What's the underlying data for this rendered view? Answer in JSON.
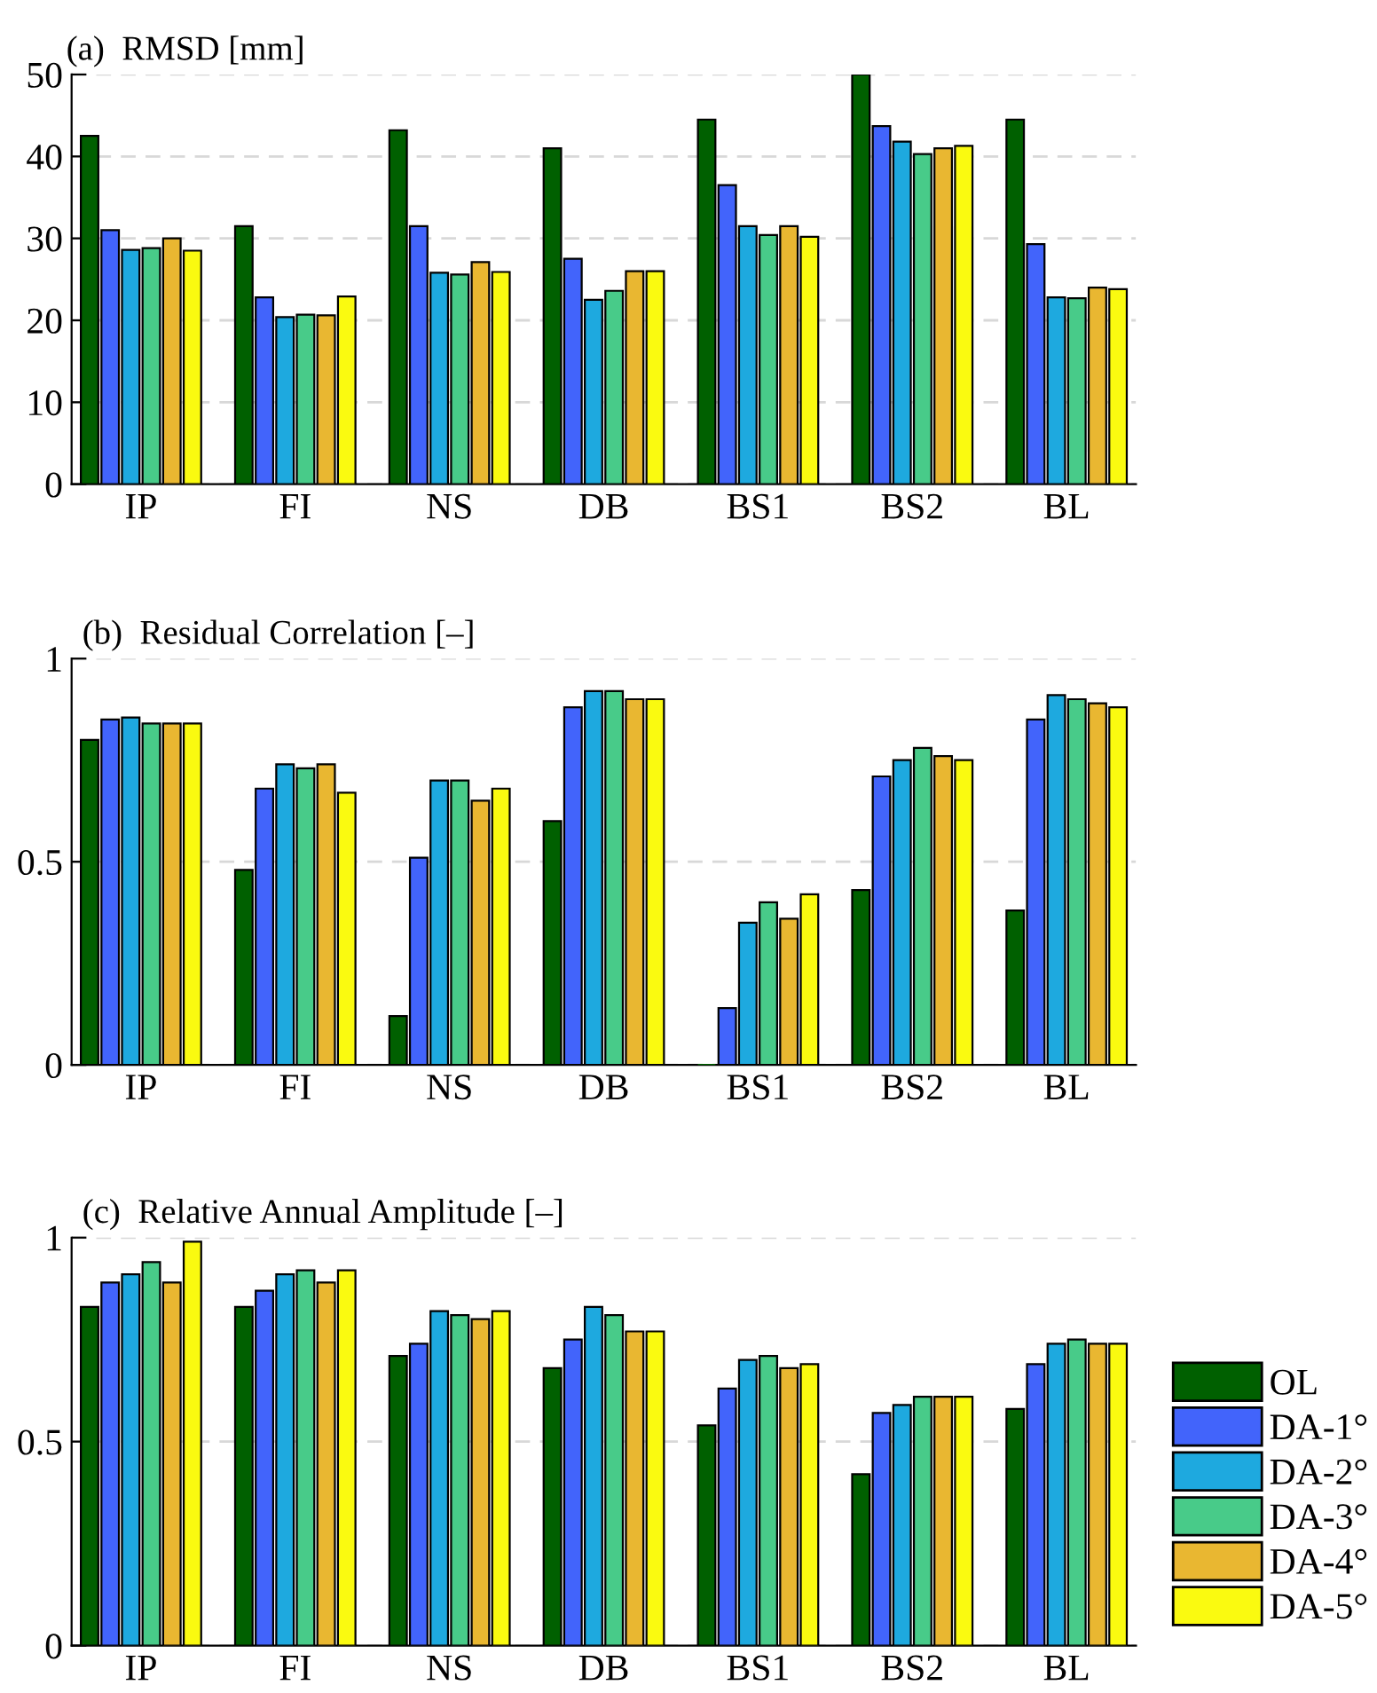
{
  "chart_data": [
    {
      "type": "bar",
      "title": "(a)  RMSD [mm]",
      "categories": [
        "IP",
        "FI",
        "NS",
        "DB",
        "BS1",
        "BS2",
        "BL"
      ],
      "ylim": [
        0,
        50
      ],
      "yticks": [
        0,
        10,
        20,
        30,
        40,
        50
      ],
      "grid": "y",
      "legend": "bottom right",
      "series": [
        {
          "name": "OL",
          "color": "#006000",
          "values": [
            42.5,
            31.5,
            43.2,
            41,
            44.5,
            50,
            44.5
          ]
        },
        {
          "name": "DA-1°",
          "color": "#4264fb",
          "values": [
            31,
            22.8,
            31.5,
            27.5,
            36.5,
            43.7,
            29.3
          ]
        },
        {
          "name": "DA-2°",
          "color": "#1ea9df",
          "values": [
            28.6,
            20.4,
            25.8,
            22.5,
            31.5,
            41.8,
            22.8
          ]
        },
        {
          "name": "DA-3°",
          "color": "#48cb89",
          "values": [
            28.8,
            20.7,
            25.6,
            23.6,
            30.4,
            40.3,
            22.7
          ]
        },
        {
          "name": "DA-4°",
          "color": "#e9b731",
          "values": [
            30,
            20.6,
            27.1,
            26,
            31.5,
            41,
            24
          ]
        },
        {
          "name": "DA-5°",
          "color": "#fafa10",
          "values": [
            28.5,
            22.9,
            25.9,
            26,
            30.2,
            41.3,
            23.8
          ]
        }
      ]
    },
    {
      "type": "bar",
      "title": "(b)  Residual Correlation [–]",
      "categories": [
        "IP",
        "FI",
        "NS",
        "DB",
        "BS1",
        "BS2",
        "BL"
      ],
      "ylim": [
        0,
        1
      ],
      "yticks": [
        0,
        0.5,
        1
      ],
      "grid": "y",
      "series": [
        {
          "color": "#006000",
          "values": [
            0.8,
            0.48,
            0.12,
            0.6,
            0,
            0.43,
            0.38
          ]
        },
        {
          "color": "#4264fb",
          "values": [
            0.85,
            0.68,
            0.51,
            0.88,
            0.14,
            0.71,
            0.85
          ]
        },
        {
          "color": "#1ea9df",
          "values": [
            0.855,
            0.74,
            0.7,
            0.92,
            0.35,
            0.75,
            0.91
          ]
        },
        {
          "color": "#48cb89",
          "values": [
            0.84,
            0.73,
            0.7,
            0.92,
            0.4,
            0.78,
            0.9
          ]
        },
        {
          "color": "#e9b731",
          "values": [
            0.84,
            0.74,
            0.65,
            0.9,
            0.36,
            0.76,
            0.89
          ]
        },
        {
          "color": "#fafa10",
          "values": [
            0.84,
            0.67,
            0.68,
            0.9,
            0.42,
            0.75,
            0.88
          ]
        }
      ]
    },
    {
      "type": "bar",
      "title": "(c)  Relative Annual Amplitude [–]",
      "categories": [
        "IP",
        "FI",
        "NS",
        "DB",
        "BS1",
        "BS2",
        "BL"
      ],
      "ylim": [
        0,
        1
      ],
      "yticks": [
        0,
        0.5,
        1
      ],
      "grid": "y",
      "series": [
        {
          "color": "#006000",
          "values": [
            0.83,
            0.83,
            0.71,
            0.68,
            0.54,
            0.42,
            0.58
          ]
        },
        {
          "color": "#4264fb",
          "values": [
            0.89,
            0.87,
            0.74,
            0.75,
            0.63,
            0.57,
            0.69
          ]
        },
        {
          "color": "#1ea9df",
          "values": [
            0.91,
            0.91,
            0.82,
            0.83,
            0.7,
            0.59,
            0.74
          ]
        },
        {
          "color": "#48cb89",
          "values": [
            0.94,
            0.92,
            0.81,
            0.81,
            0.71,
            0.61,
            0.75
          ]
        },
        {
          "color": "#e9b731",
          "values": [
            0.89,
            0.89,
            0.8,
            0.77,
            0.68,
            0.61,
            0.74
          ]
        },
        {
          "color": "#fafa10",
          "values": [
            0.99,
            0.92,
            0.82,
            0.77,
            0.69,
            0.61,
            0.74
          ]
        }
      ]
    }
  ]
}
